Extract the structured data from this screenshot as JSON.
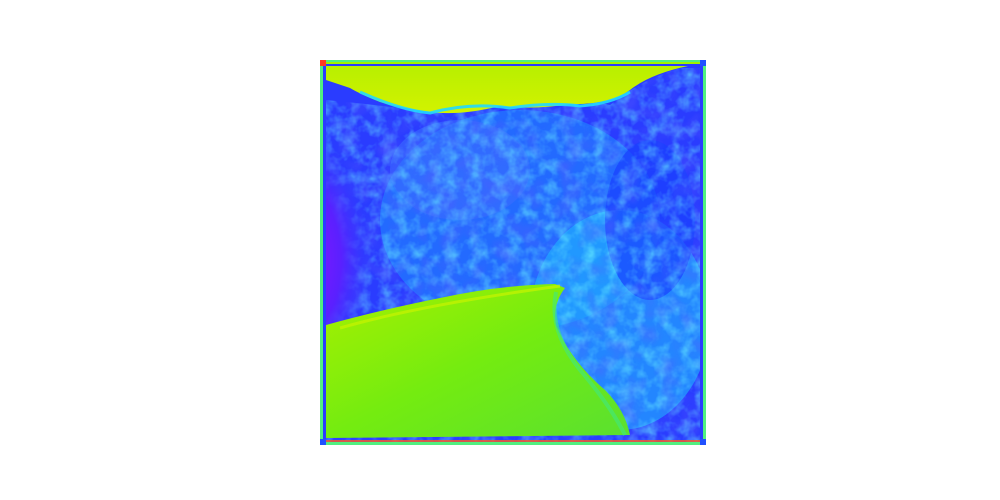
{
  "image": {
    "kind": "false-color depth/saliency visualization of a mountain road scene",
    "palette": "hsv-like",
    "colors": {
      "sky": "#c8f000",
      "road": "#70f000",
      "far_rock": "#1e3cff",
      "near_rock": "#7a1aff",
      "mid_rock": "#1ea0ff",
      "highlight": "#22e8ff",
      "border": "#50f080",
      "edge_red": "#ff3a20"
    }
  }
}
